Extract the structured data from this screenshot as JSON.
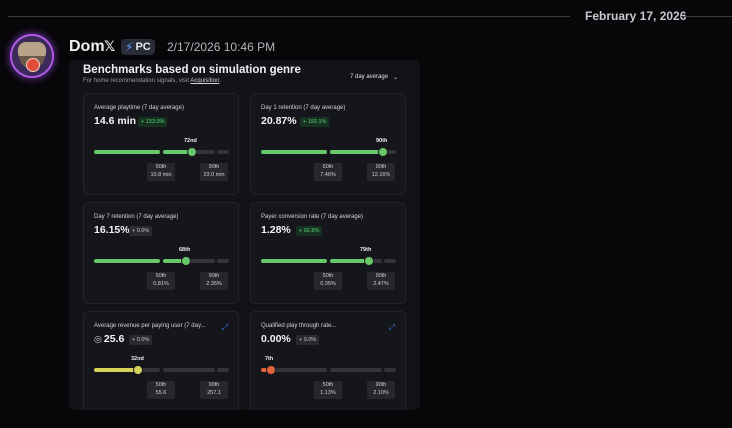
{
  "date_divider": "February 17, 2026",
  "message": {
    "username": "Dom",
    "x_icon": "𝕏",
    "tag_icon": "⚡",
    "tag": "PC",
    "timestamp": "2/17/2026 10:46 PM"
  },
  "panel": {
    "title": "Benchmarks based on simulation genre",
    "subtitle_prefix": "For home recommendation signals, visit",
    "subtitle_link": "Acquisition",
    "subtitle_suffix": ".",
    "dropdown": "7 day average",
    "dropdown_icon": "⌄"
  },
  "colors": {
    "accent_green": "#67c769",
    "accent_yellow": "#d7d35a",
    "accent_red": "#e4653b",
    "trend_blue": "#3d73f0"
  },
  "cards": [
    {
      "label": "Average playtime (7 day average)",
      "value": "14.6 min",
      "delta": "+ 133.0%",
      "delta_type": "up",
      "percentile": "72nd",
      "p50": {
        "label": "50th",
        "value": "10.8 min"
      },
      "p90": {
        "label": "90th",
        "value": "23.0 min"
      }
    },
    {
      "label": "Day 1 retention (7 day average)",
      "value": "20.87%",
      "delta": "+ 192.1%",
      "delta_type": "up",
      "percentile": "90th",
      "p50": {
        "label": "50th",
        "value": "7.46%"
      },
      "p90": {
        "label": "90th",
        "value": "12.16%"
      }
    },
    {
      "label": "Day 7 retention (7 day average)",
      "value": "16.15%",
      "delta": "+ 0.0%",
      "delta_type": "flat",
      "percentile": "68th",
      "p50": {
        "label": "50th",
        "value": "0.81%"
      },
      "p90": {
        "label": "90th",
        "value": "2.35%"
      }
    },
    {
      "label": "Payer conversion rate (7 day average)",
      "value": "1.28%",
      "delta": "+ 92.8%",
      "delta_type": "up",
      "percentile": "79th",
      "p50": {
        "label": "50th",
        "value": "0.35%"
      },
      "p90": {
        "label": "90th",
        "value": "2.47%"
      }
    },
    {
      "label": "Average revenue per paying user (7 day...",
      "value": "25.6",
      "coin_icon": "◎",
      "trend_icon": "⤢",
      "delta": "+ 0.0%",
      "delta_type": "flat",
      "percentile": "32nd",
      "p50": {
        "label": "50th",
        "value": "55.6"
      },
      "p90": {
        "label": "90th",
        "value": "257.1"
      }
    },
    {
      "label": "Qualified play through rate...",
      "value": "0.00%",
      "trend_icon": "⤢",
      "delta": "+ 0.0%",
      "delta_type": "flat",
      "percentile": "7th",
      "p50": {
        "label": "50th",
        "value": "1.13%"
      },
      "p90": {
        "label": "90th",
        "value": "2.10%"
      }
    }
  ]
}
